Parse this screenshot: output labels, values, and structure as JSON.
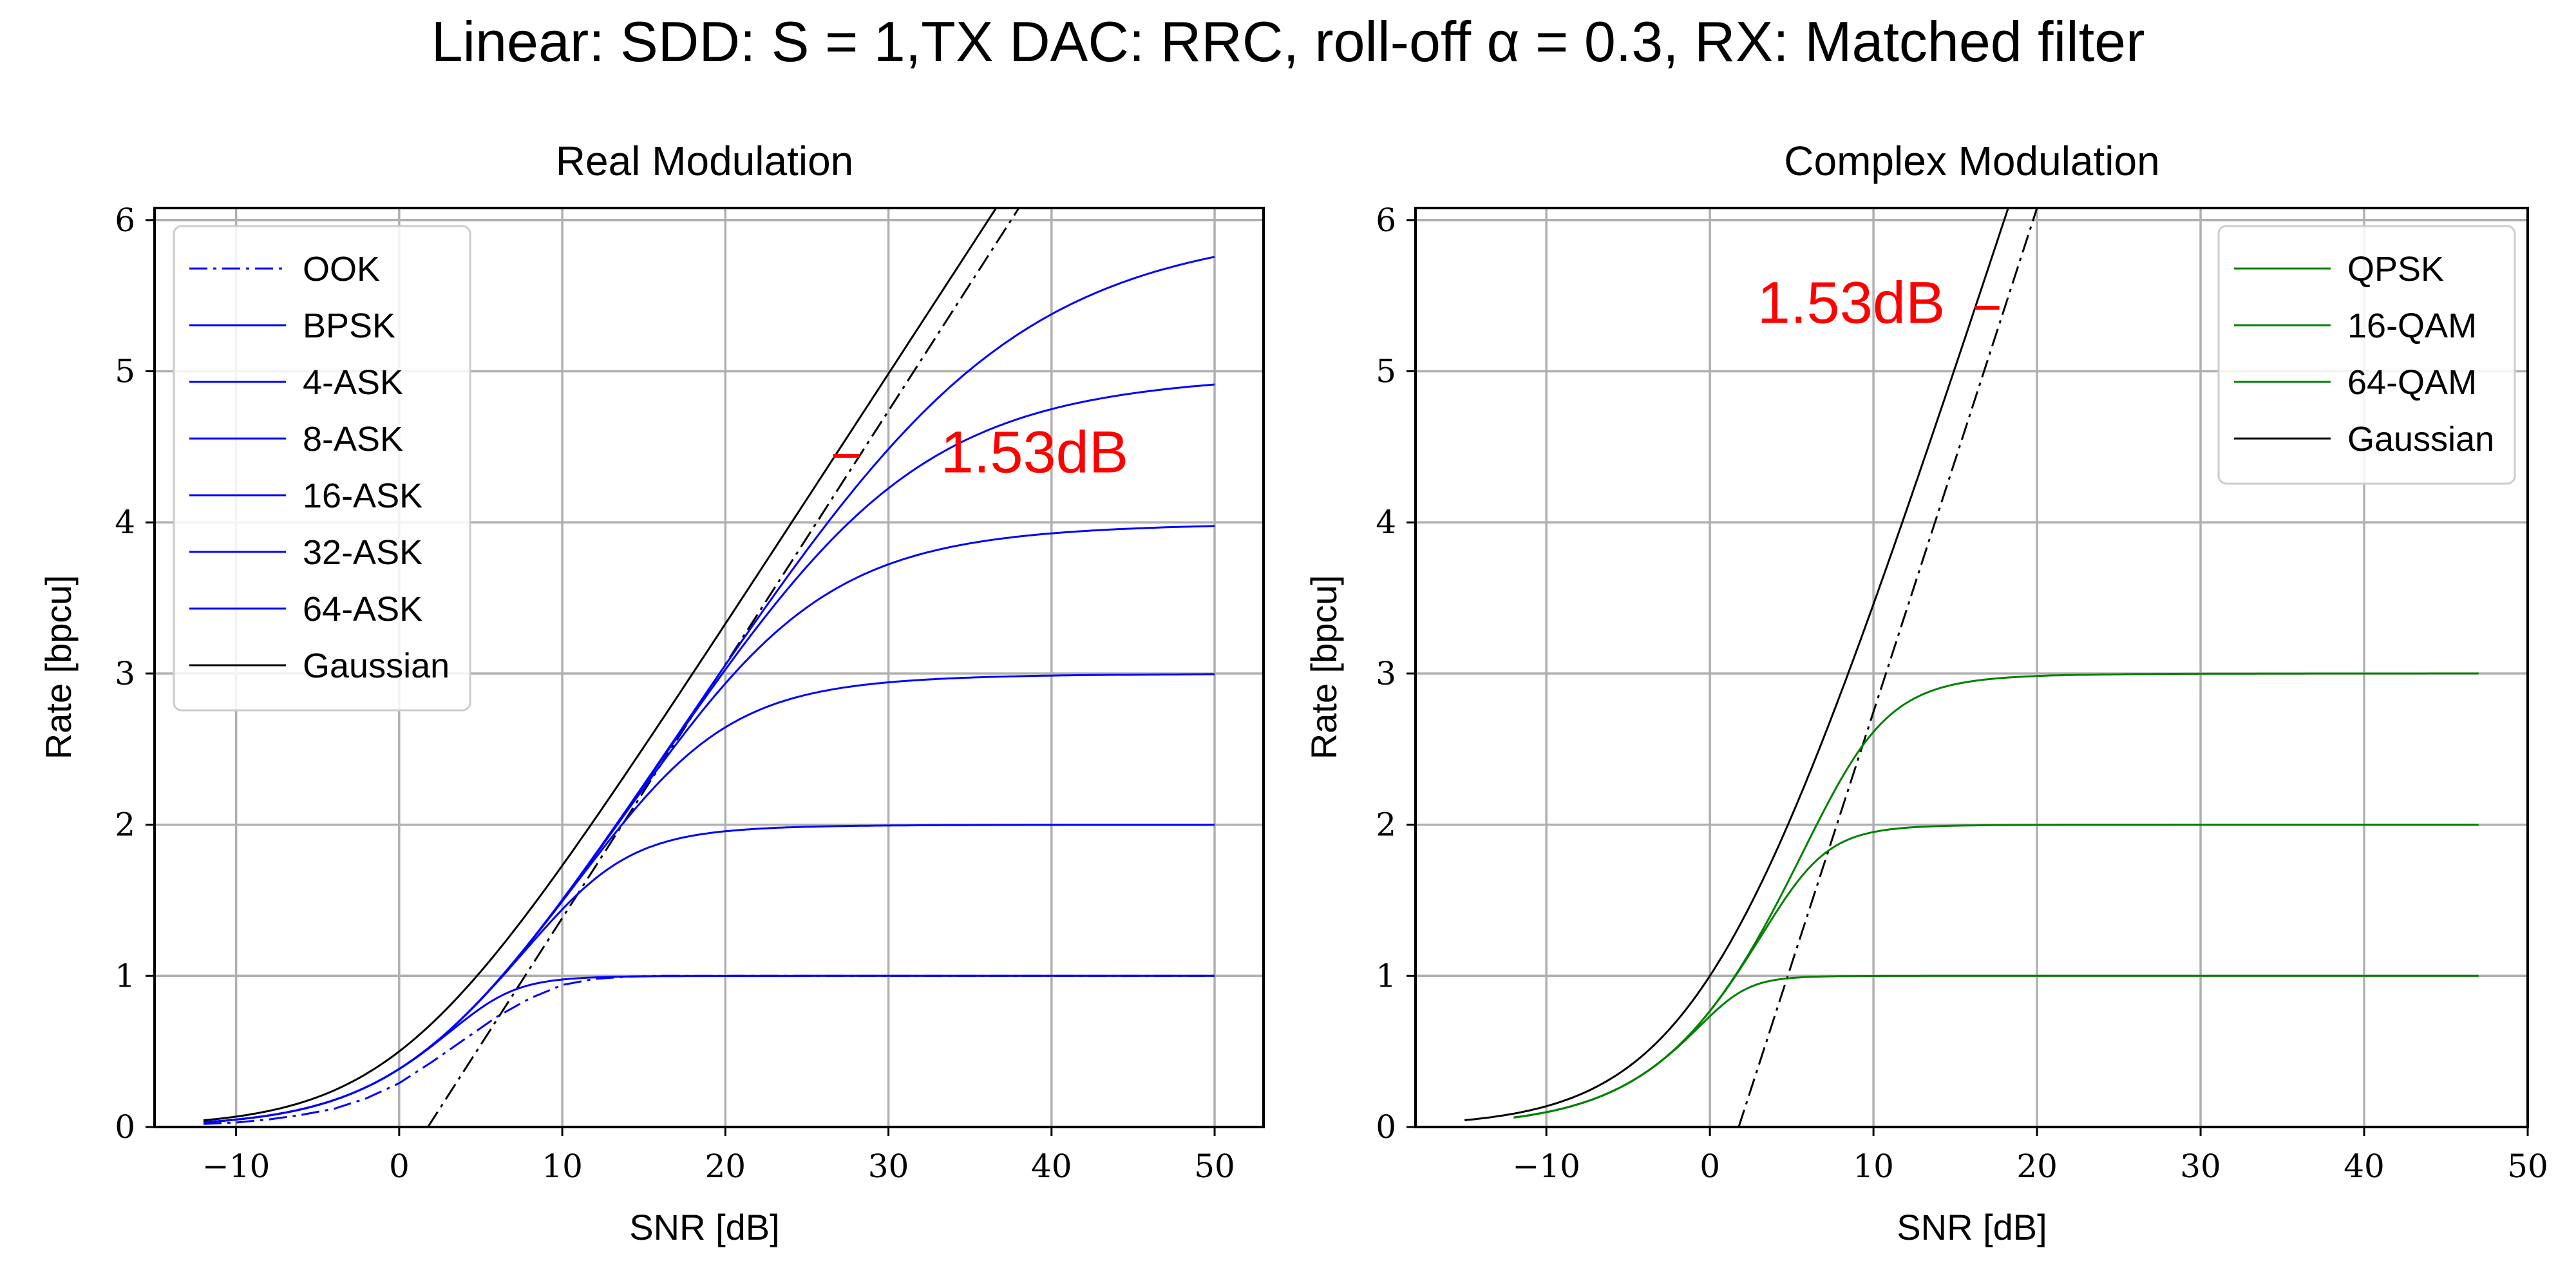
{
  "figure": {
    "suptitle": "Linear: SDD: S = 1,TX DAC: RRC, roll-off α = 0.3, RX: Matched filter"
  },
  "chart_data": [
    {
      "type": "line",
      "title": "Real Modulation",
      "xlabel": "SNR [dB]",
      "ylabel": "Rate [bpcu]",
      "xlim": [
        -15,
        53
      ],
      "ylim": [
        0,
        6.08
      ],
      "xticks": [
        -10,
        0,
        10,
        20,
        30,
        40,
        50
      ],
      "yticks": [
        0,
        1,
        2,
        3,
        4,
        5,
        6
      ],
      "grid": true,
      "legend_position": "upper-left",
      "gaussian_type": "real",
      "series": [
        {
          "name": "OOK",
          "color": "#0000ff",
          "dash": "dashdot",
          "x": [
            -12,
            -10,
            -8,
            -6,
            -4,
            -2,
            0,
            2,
            4,
            6,
            8,
            10,
            12,
            14,
            16,
            20,
            30,
            40,
            50
          ],
          "y": [
            0.02,
            0.03,
            0.05,
            0.08,
            0.12,
            0.19,
            0.29,
            0.43,
            0.58,
            0.73,
            0.85,
            0.94,
            0.98,
            0.995,
            1.0,
            1.0,
            1.0,
            1.0,
            1.0
          ]
        },
        {
          "name": "BPSK",
          "color": "#0000ff",
          "levels": 1,
          "gap_db": 1.53,
          "x_end": 50
        },
        {
          "name": "4-ASK",
          "color": "#0000ff",
          "levels": 2,
          "gap_db": 1.53,
          "x_end": 50
        },
        {
          "name": "8-ASK",
          "color": "#0000ff",
          "levels": 3,
          "gap_db": 1.53,
          "x_end": 50
        },
        {
          "name": "16-ASK",
          "color": "#0000ff",
          "levels": 4,
          "gap_db": 1.53,
          "x_end": 50
        },
        {
          "name": "32-ASK",
          "color": "#0000ff",
          "levels": 5,
          "gap_db": 1.53,
          "x_end": 50
        },
        {
          "name": "64-ASK",
          "color": "#0000ff",
          "levels": 6,
          "gap_db": 1.53,
          "x_end": 50
        },
        {
          "name": "Gaussian",
          "color": "#000000",
          "x_start": -12
        }
      ],
      "reference_line": {
        "color": "#000000",
        "dash": "dashdot",
        "x": [
          1.76,
          38.0
        ],
        "y": [
          0.0,
          6.08
        ]
      },
      "annotation": {
        "text": "1.53dB",
        "color": "#ff0000",
        "x": 33.2,
        "y": 4.33,
        "marker_x": [
          26.6,
          28.2
        ],
        "marker_y": 4.44
      }
    },
    {
      "type": "line",
      "title": "Complex Modulation",
      "xlabel": "SNR [dB]",
      "ylabel": "Rate [bpcu]",
      "xlim": [
        -18,
        50
      ],
      "ylim": [
        0,
        6.08
      ],
      "xticks": [
        -10,
        0,
        10,
        20,
        30,
        40,
        50
      ],
      "yticks": [
        0,
        1,
        2,
        3,
        4,
        5,
        6
      ],
      "grid": true,
      "legend_position": "upper-right",
      "gaussian_type": "complex",
      "series": [
        {
          "name": "QPSK",
          "color": "#008000",
          "levels": 1,
          "gap_db": 1.53,
          "x_end": 47,
          "complex": true
        },
        {
          "name": "16-QAM",
          "color": "#008000",
          "levels": 2,
          "gap_db": 1.53,
          "x_end": 47,
          "complex": true
        },
        {
          "name": "64-QAM",
          "color": "#008000",
          "levels": 3,
          "gap_db": 1.53,
          "x_end": 47,
          "complex": true
        },
        {
          "name": "Gaussian",
          "color": "#000000",
          "x_start": -15
        }
      ],
      "reference_line": {
        "color": "#000000",
        "dash": "dashdot",
        "x": [
          1.76,
          20.0
        ],
        "y": [
          0.0,
          6.08
        ]
      },
      "annotation": {
        "text": "1.53dB",
        "color": "#ff0000",
        "x": 2.9,
        "y": 5.32,
        "marker_x": [
          16.2,
          17.7
        ],
        "marker_y": 5.42
      }
    }
  ]
}
